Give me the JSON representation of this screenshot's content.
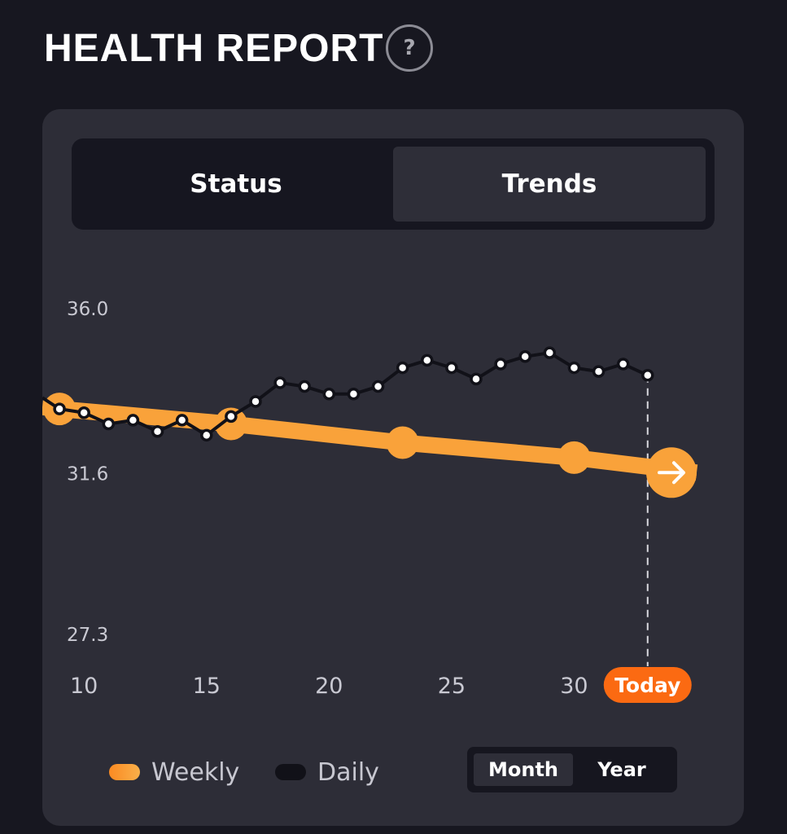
{
  "header": {
    "title": "HEALTH REPORT",
    "help_label": "?"
  },
  "tabs": [
    {
      "label": "Status",
      "active": false
    },
    {
      "label": "Trends",
      "active": true
    }
  ],
  "range": {
    "options": [
      "Month",
      "Year"
    ],
    "selected": "Month"
  },
  "legend": {
    "weekly": "Weekly",
    "daily": "Daily"
  },
  "colors": {
    "accent": "#f9a23a",
    "today_badge": "#fb6a12",
    "background": "#171720",
    "card": "#2d2d37",
    "daily_line": "#111118"
  },
  "chart_data": {
    "type": "line",
    "title": "",
    "xlabel": "",
    "ylabel": "",
    "y_ticks": [
      "36.0",
      "31.6",
      "27.3"
    ],
    "ylim": [
      27.3,
      36.0
    ],
    "x_ticks": [
      {
        "value": 10,
        "label": "10"
      },
      {
        "value": 15,
        "label": "15"
      },
      {
        "value": 20,
        "label": "20"
      },
      {
        "value": 25,
        "label": "25"
      },
      {
        "value": 30,
        "label": "30"
      },
      {
        "value": 33,
        "label": "Today",
        "highlight": true
      }
    ],
    "xlim": [
      8.3,
      35.0
    ],
    "series": [
      {
        "name": "Weekly",
        "color": "#f9a23a",
        "x": [
          9.0,
          16.0,
          23.0,
          30.0,
          35.0
        ],
        "y": [
          33.3,
          32.9,
          32.4,
          32.0,
          31.6
        ],
        "end_marker": "arrow-right-icon"
      },
      {
        "name": "Daily",
        "color": "#111118",
        "x": [
          8.3,
          9.0,
          10.0,
          11.0,
          12.0,
          13.0,
          14.0,
          15.0,
          16.0,
          17.0,
          18.0,
          19.0,
          20.0,
          21.0,
          22.0,
          23.0,
          24.0,
          25.0,
          26.0,
          27.0,
          28.0,
          29.0,
          30.0,
          31.0,
          32.0,
          33.0
        ],
        "y": [
          33.6,
          33.3,
          33.2,
          32.9,
          33.0,
          32.7,
          33.0,
          32.6,
          33.1,
          33.5,
          34.0,
          33.9,
          33.7,
          33.7,
          33.9,
          34.4,
          34.6,
          34.4,
          34.1,
          34.5,
          34.7,
          34.8,
          34.4,
          34.3,
          34.5,
          34.2
        ]
      }
    ],
    "today_x": 33,
    "grid": false,
    "legend_position": "bottom-left"
  }
}
